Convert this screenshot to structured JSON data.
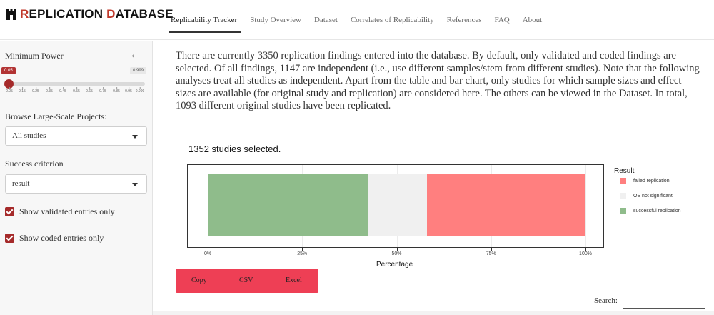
{
  "brand": {
    "prefix_letter": "R",
    "prefix_rest": "EPLICATION ",
    "suffix_letter": "D",
    "suffix_rest": "ATABASE"
  },
  "nav": {
    "tabs": [
      {
        "label": "Replicability Tracker",
        "active": true
      },
      {
        "label": "Study Overview"
      },
      {
        "label": "Dataset"
      },
      {
        "label": "Correlates of Replicability"
      },
      {
        "label": "References"
      },
      {
        "label": "FAQ"
      },
      {
        "label": "About"
      }
    ]
  },
  "sidebar": {
    "power_label": "Minimum Power",
    "power_min_value": "0.05",
    "power_max_value": "0.999",
    "power_ticks": [
      "0.05",
      "0.15",
      "0.25",
      "0.35",
      "0.45",
      "0.55",
      "0.65",
      "0.75",
      "0.85",
      "0.95",
      "0.999"
    ],
    "projects_label": "Browse Large-Scale Projects:",
    "projects_value": "All studies",
    "criterion_label": "Success criterion",
    "criterion_value": "result",
    "validated_label": "Show validated entries only",
    "coded_label": "Show coded entries only",
    "collapse_icon": "chevron-left-icon"
  },
  "main": {
    "intro": "There are currently 3350 replication findings entered into the database. By default, only validated and coded findings are selected. Of all findings, 1147 are independent (i.e., use different samples/stem from different studies). Note that the following analyses treat all studies as independent. Apart from the table and bar chart, only studies for which sample sizes and effect sizes are available (for original study and replication) are considered here. The others can be viewed in the Dataset. In total, 1093 different original studies have been replicated.",
    "selected_text": "1352 studies selected.",
    "buttons": {
      "copy": "Copy",
      "csv": "CSV",
      "excel": "Excel"
    },
    "search_label": "Search:",
    "search_value": ""
  },
  "chart_data": {
    "type": "bar",
    "orientation": "horizontal-stacked",
    "xlabel": "Percentage",
    "x_ticks": [
      "0%",
      "25%",
      "50%",
      "75%",
      "100%"
    ],
    "xlim": [
      0,
      100
    ],
    "legend_title": "Result",
    "legend_position": "right",
    "series": [
      {
        "name": "successful replication",
        "value": 42.5,
        "color": "#8fbc8b"
      },
      {
        "name": "OS not significant",
        "value": 15.5,
        "color": "#f0f0f0"
      },
      {
        "name": "failed replication",
        "value": 42.0,
        "color": "#ff7f7f"
      }
    ],
    "legend_order": [
      "failed replication",
      "OS not significant",
      "successful replication"
    ]
  }
}
